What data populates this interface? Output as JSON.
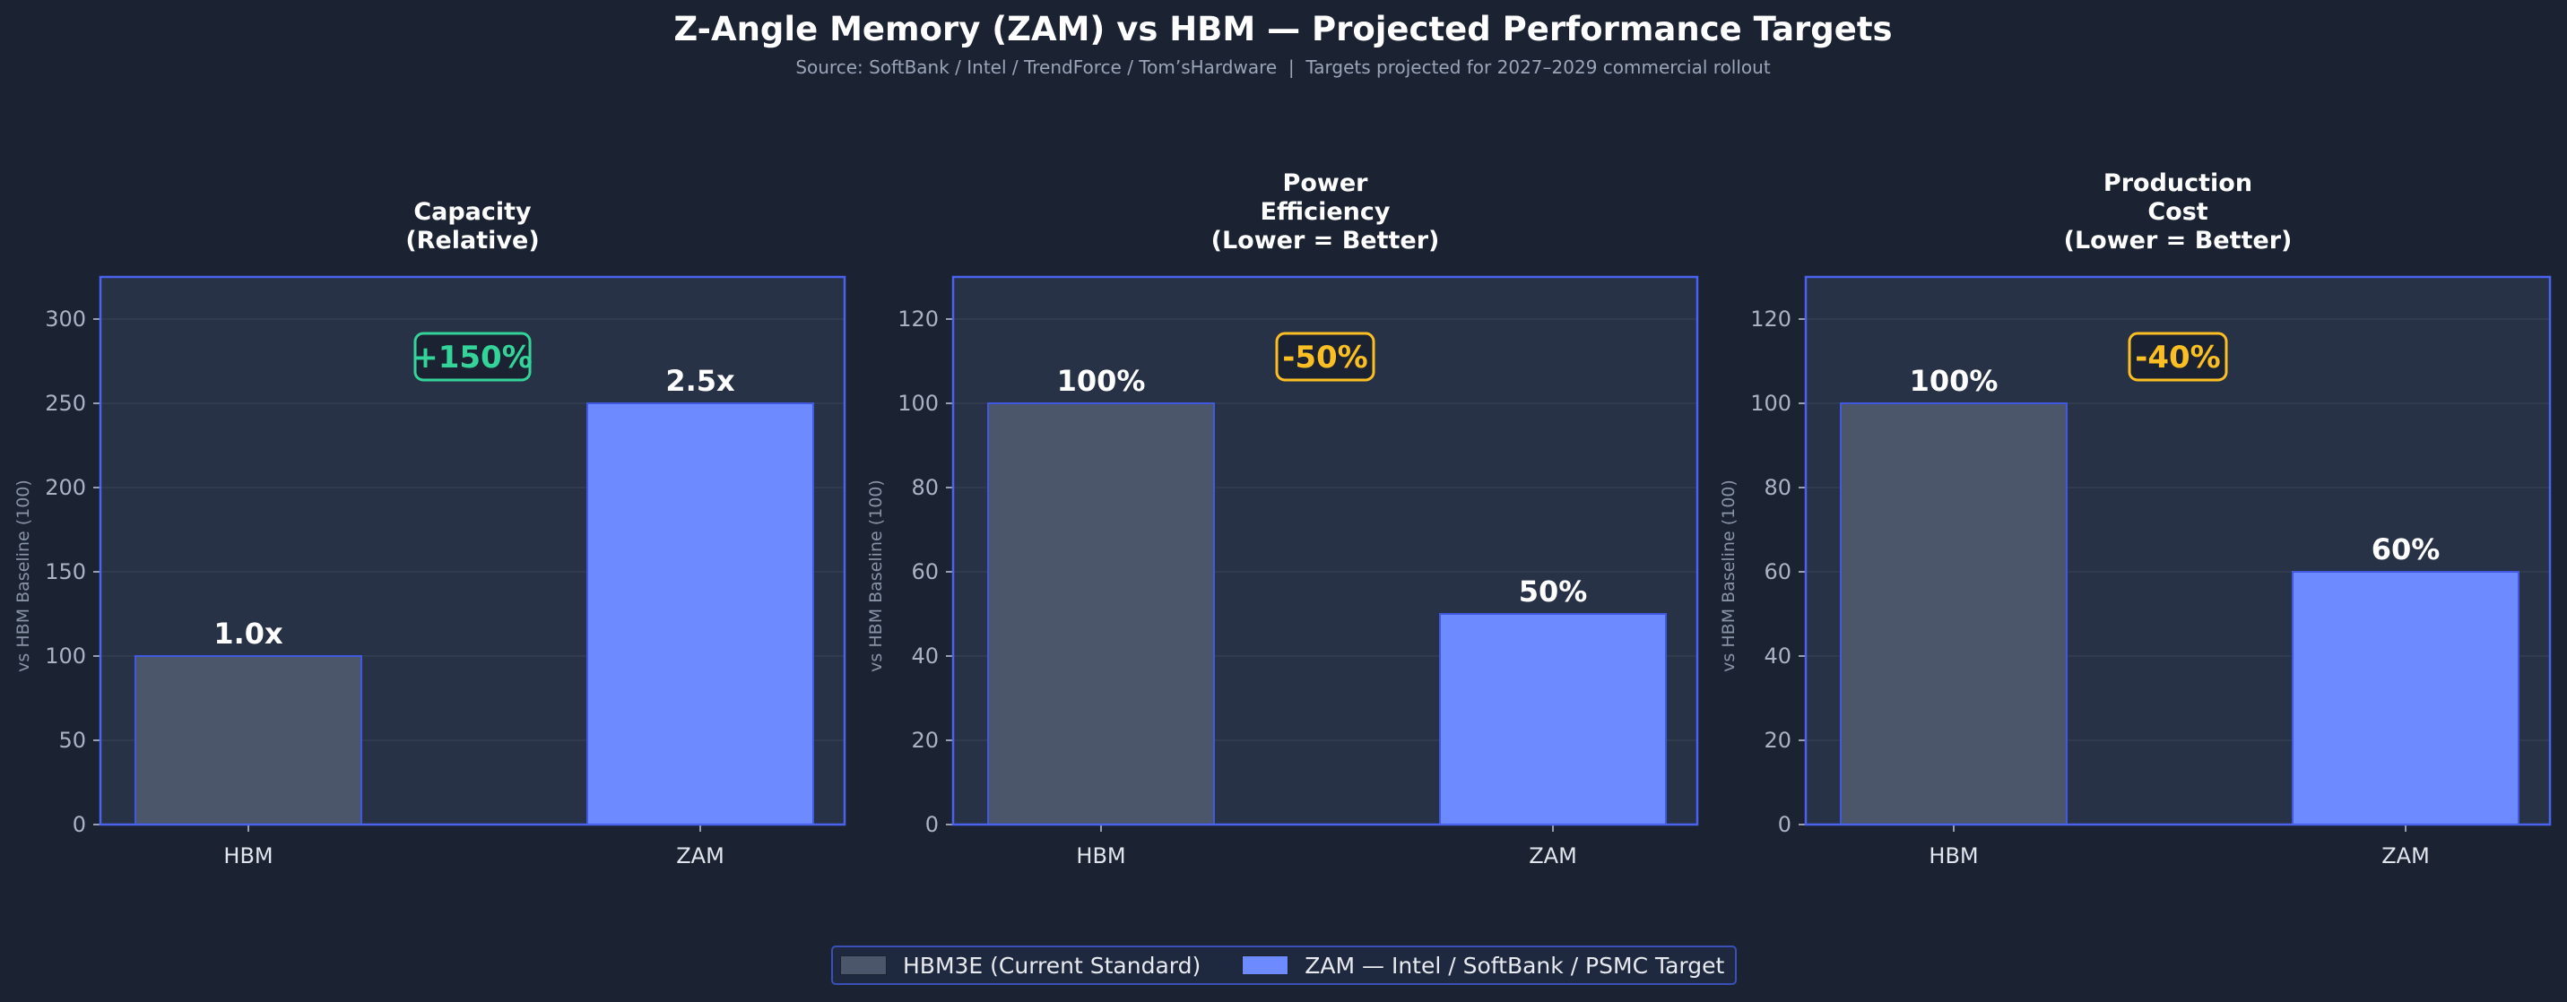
{
  "title": "Z-Angle Memory (ZAM) vs HBM — Projected Performance Targets",
  "subtitle": "Source: SoftBank / Intel / TrendForce / Tom’sHardware  |  Targets projected for 2027–2029 commercial rollout",
  "colors": {
    "background": "#1b2333",
    "panel": "#283246",
    "hbm_bar": "#4b566b",
    "zam_bar": "#6e8aff",
    "bar_edge": "#4158e0",
    "frame": "#4a62ee",
    "positive_badge": "#34d399",
    "negative_badge": "#fbbf24"
  },
  "legend": {
    "items": [
      {
        "label": "HBM3E (Current Standard)",
        "color": "#4b566b"
      },
      {
        "label": "ZAM — Intel / SoftBank / PSMC Target",
        "color": "#6e8aff"
      }
    ]
  },
  "chart_data": [
    {
      "type": "bar",
      "title": "Capacity\n(Relative)",
      "categories": [
        "HBM",
        "ZAM"
      ],
      "values": [
        100,
        250
      ],
      "value_labels": [
        "1.0x",
        "2.5x"
      ],
      "ylabel": "vs HBM Baseline (100)",
      "ylim": [
        0,
        325
      ],
      "yticks": [
        0,
        50,
        100,
        150,
        200,
        250,
        300
      ],
      "badge": {
        "text": "+150%",
        "kind": "positive"
      },
      "grid": true
    },
    {
      "type": "bar",
      "title": "Power\nEfficiency\n(Lower = Better)",
      "categories": [
        "HBM",
        "ZAM"
      ],
      "values": [
        100,
        50
      ],
      "value_labels": [
        "100%",
        "50%"
      ],
      "ylabel": "vs HBM Baseline (100)",
      "ylim": [
        0,
        130
      ],
      "yticks": [
        0,
        20,
        40,
        60,
        80,
        100,
        120
      ],
      "badge": {
        "text": "-50%",
        "kind": "negative"
      },
      "grid": true
    },
    {
      "type": "bar",
      "title": "Production\nCost\n(Lower = Better)",
      "categories": [
        "HBM",
        "ZAM"
      ],
      "values": [
        100,
        60
      ],
      "value_labels": [
        "100%",
        "60%"
      ],
      "ylabel": "vs HBM Baseline (100)",
      "ylim": [
        0,
        130
      ],
      "yticks": [
        0,
        20,
        40,
        60,
        80,
        100,
        120
      ],
      "badge": {
        "text": "-40%",
        "kind": "negative"
      },
      "grid": true
    }
  ]
}
